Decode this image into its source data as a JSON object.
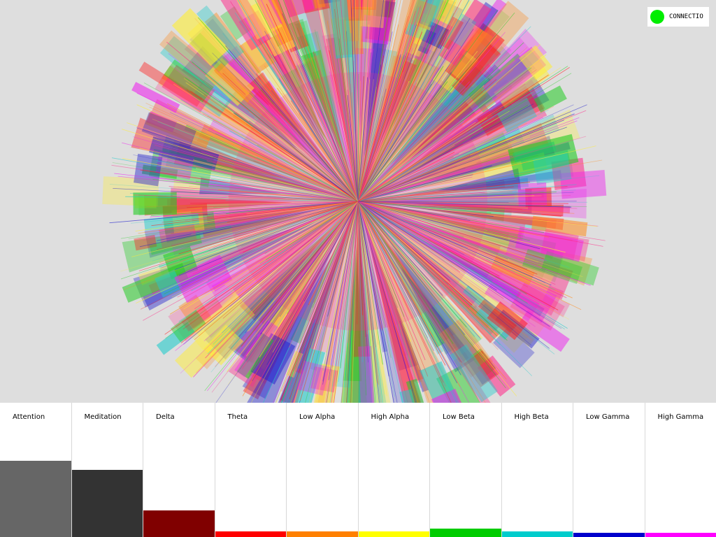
{
  "connection": {
    "label": "CONNECTIO",
    "status_color": "#00ee00"
  },
  "visualization": {
    "palette": [
      "#ff1a1a",
      "#ff8a1a",
      "#ffee33",
      "#22cc22",
      "#22cccc",
      "#2222cc",
      "#ee22ee",
      "#ff2b8a"
    ]
  },
  "channels": [
    {
      "label": "Attention",
      "color": "#666666",
      "level": 0.57
    },
    {
      "label": "Meditation",
      "color": "#333333",
      "level": 0.5
    },
    {
      "label": "Delta",
      "color": "#800000",
      "level": 0.2
    },
    {
      "label": "Theta",
      "color": "#ff0000",
      "level": 0.04
    },
    {
      "label": "Low Alpha",
      "color": "#ff8000",
      "level": 0.04
    },
    {
      "label": "High Alpha",
      "color": "#ffff00",
      "level": 0.04
    },
    {
      "label": "Low Beta",
      "color": "#00cc00",
      "level": 0.065
    },
    {
      "label": "High Beta",
      "color": "#00cccc",
      "level": 0.04
    },
    {
      "label": "Low Gamma",
      "color": "#0000cc",
      "level": 0.03
    },
    {
      "label": "High Gamma",
      "color": "#ff00ff",
      "level": 0.03
    }
  ]
}
